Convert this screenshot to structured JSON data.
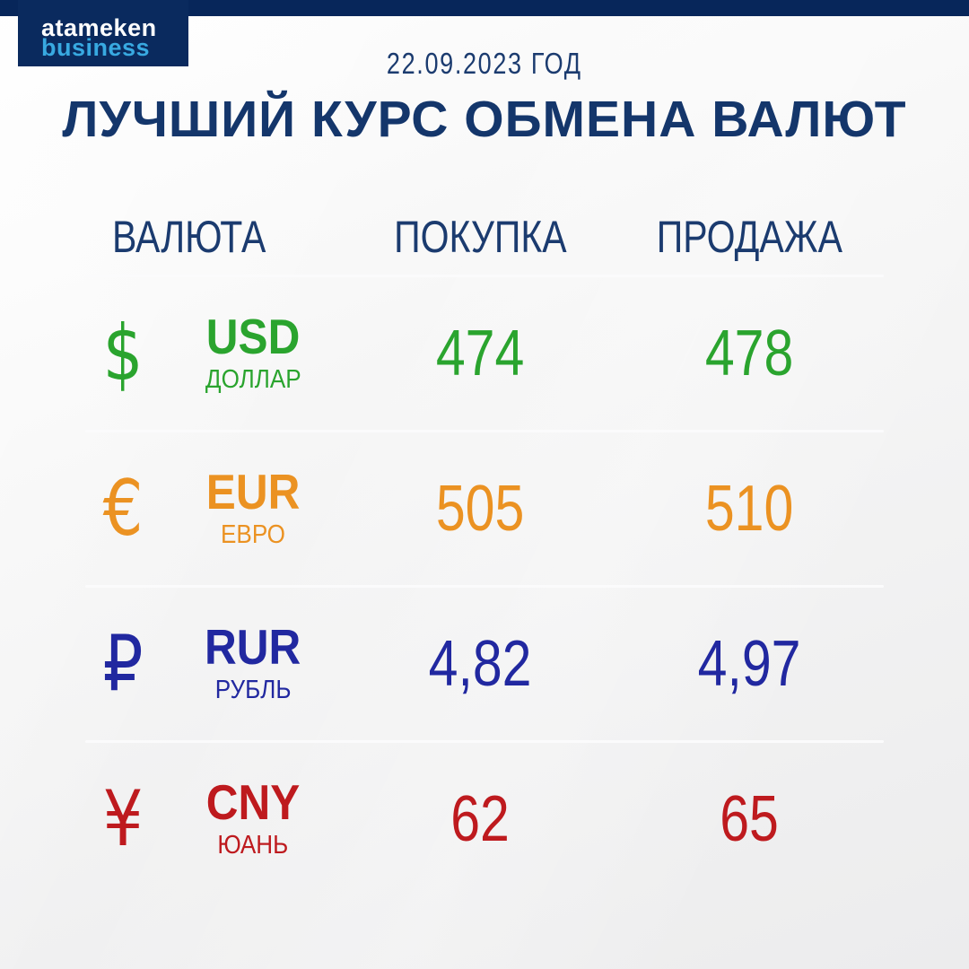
{
  "brand": {
    "line1": "atameken",
    "line2": "business",
    "bg_color": "#0a2a5e",
    "line1_color": "#ffffff",
    "line2_color": "#38a9e1"
  },
  "header": {
    "date": "22.09.2023 ГОД",
    "title": "ЛУЧШИЙ КУРС ОБМЕНА ВАЛЮТ",
    "text_color": "#1b3b6f"
  },
  "table": {
    "columns": {
      "currency": "ВАЛЮТА",
      "buy": "ПОКУПКА",
      "sell": "ПРОДАЖА"
    },
    "rows": [
      {
        "code": "USD",
        "name": "ДОЛЛАР",
        "symbol": "$",
        "symbol_icon": "dollar-icon",
        "buy": "474",
        "sell": "478",
        "color": "#2aa42e"
      },
      {
        "code": "EUR",
        "name": "ЕВРО",
        "symbol": "€",
        "symbol_icon": "euro-icon",
        "buy": "505",
        "sell": "510",
        "color": "#eb9222"
      },
      {
        "code": "RUR",
        "name": "РУБЛЬ",
        "symbol": "₽",
        "symbol_icon": "ruble-icon",
        "buy": "4,82",
        "sell": "4,97",
        "color": "#2128a0"
      },
      {
        "code": "CNY",
        "name": "ЮАНЬ",
        "symbol": "¥",
        "symbol_icon": "yuan-icon",
        "buy": "62",
        "sell": "65",
        "color": "#be1a1e"
      }
    ]
  },
  "chart_data": {
    "type": "table",
    "title": "ЛУЧШИЙ КУРС ОБМЕНА ВАЛЮТ",
    "subtitle": "22.09.2023 ГОД",
    "columns": [
      "ВАЛЮТА",
      "ПОКУПКА",
      "ПРОДАЖА"
    ],
    "rows": [
      [
        "USD (ДОЛЛАР)",
        474,
        478
      ],
      [
        "EUR (ЕВРО)",
        505,
        510
      ],
      [
        "RUR (РУБЛЬ)",
        4.82,
        4.97
      ],
      [
        "CNY (ЮАНЬ)",
        62,
        65
      ]
    ]
  }
}
